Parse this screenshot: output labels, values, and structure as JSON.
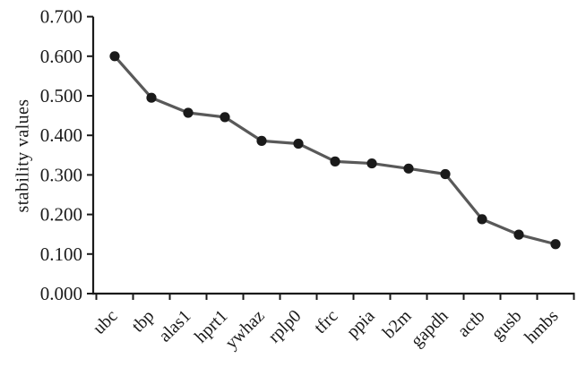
{
  "chart_data": {
    "type": "line",
    "title": "",
    "xlabel": "",
    "ylabel": "stability values",
    "categories": [
      "ubc",
      "tbp",
      "alas1",
      "hprt1",
      "ywhaz",
      "rplp0",
      "tfrc",
      "ppia",
      "b2m",
      "gapdh",
      "actb",
      "gusb",
      "hmbs"
    ],
    "values": [
      0.6,
      0.495,
      0.457,
      0.446,
      0.386,
      0.379,
      0.334,
      0.329,
      0.316,
      0.302,
      0.188,
      0.149,
      0.125
    ],
    "ylim": [
      0.0,
      0.7
    ],
    "ytick_step": 0.1,
    "yticks": [
      "0.000",
      "0.100",
      "0.200",
      "0.300",
      "0.400",
      "0.500",
      "0.600",
      "0.700"
    ],
    "grid": false,
    "legend": "none",
    "marker": "circle",
    "colors": {
      "line": "#595959",
      "marker": "#1a1a1a",
      "axis": "#1a1a1a",
      "text": "#1a1a1a",
      "background": "#ffffff"
    }
  }
}
